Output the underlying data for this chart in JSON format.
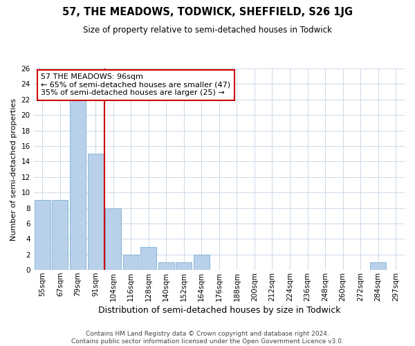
{
  "title": "57, THE MEADOWS, TODWICK, SHEFFIELD, S26 1JG",
  "subtitle": "Size of property relative to semi-detached houses in Todwick",
  "xlabel_bottom": "Distribution of semi-detached houses by size in Todwick",
  "ylabel": "Number of semi-detached properties",
  "footer_line1": "Contains HM Land Registry data © Crown copyright and database right 2024.",
  "footer_line2": "Contains public sector information licensed under the Open Government Licence v3.0.",
  "annotation_line1": "57 THE MEADOWS: 96sqm",
  "annotation_line2": "← 65% of semi-detached houses are smaller (47)",
  "annotation_line3": "35% of semi-detached houses are larger (25) →",
  "categories": [
    "55sqm",
    "67sqm",
    "79sqm",
    "91sqm",
    "104sqm",
    "116sqm",
    "128sqm",
    "140sqm",
    "152sqm",
    "164sqm",
    "176sqm",
    "188sqm",
    "200sqm",
    "212sqm",
    "224sqm",
    "236sqm",
    "248sqm",
    "260sqm",
    "272sqm",
    "284sqm",
    "297sqm"
  ],
  "values": [
    9,
    9,
    22,
    15,
    8,
    2,
    3,
    1,
    1,
    2,
    0,
    0,
    0,
    0,
    0,
    0,
    0,
    0,
    0,
    1,
    0
  ],
  "bar_color": "#b8d0ea",
  "bar_edge_color": "#7bafd4",
  "vline_color": "#cc0000",
  "vline_x": 3.5,
  "ylim": [
    0,
    26
  ],
  "yticks": [
    0,
    2,
    4,
    6,
    8,
    10,
    12,
    14,
    16,
    18,
    20,
    22,
    24,
    26
  ],
  "grid_color": "#ccd8e8",
  "fig_width": 6.0,
  "fig_height": 5.0,
  "background_color": "#ffffff",
  "title_fontsize": 10.5,
  "subtitle_fontsize": 8.5,
  "ylabel_fontsize": 8,
  "xlabel_fontsize": 9,
  "tick_fontsize": 7.5,
  "annotation_fontsize": 8,
  "footer_fontsize": 6.5
}
